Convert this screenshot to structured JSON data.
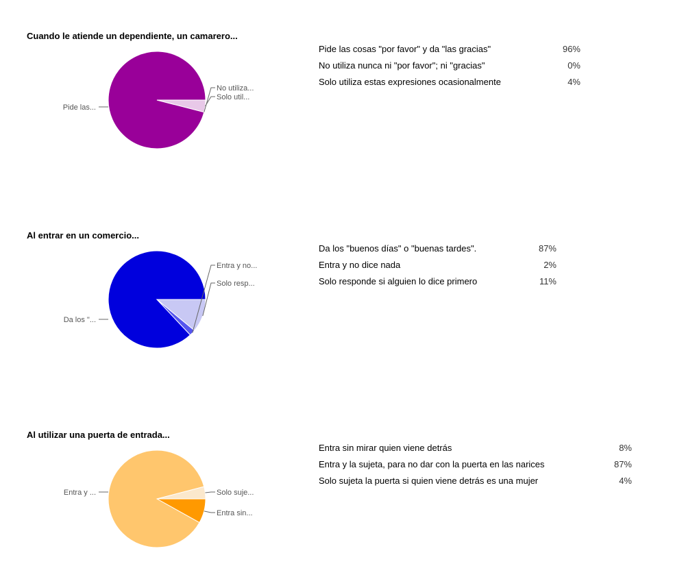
{
  "chart_data": [
    {
      "type": "pie",
      "title": "Cuando le atiende un dependiente, un camarero...",
      "slices": [
        {
          "label": "Pide las cosas \"por favor\" y da \"las gracias\"",
          "short_label": "Pide las...",
          "percent_label": "96%",
          "value": 96,
          "color": "#990099"
        },
        {
          "label": "No utiliza nunca ni \"por favor\"; ni \"gracias\"",
          "short_label": "No utiliza...",
          "percent_label": "0%",
          "value": 0,
          "color": "#dd88dd"
        },
        {
          "label": "Solo utiliza estas expresiones ocasionalmente",
          "short_label": "Solo util...",
          "percent_label": "4%",
          "value": 4,
          "color": "#e8c8e8"
        }
      ]
    },
    {
      "type": "pie",
      "title": "Al entrar en un comercio...",
      "slices": [
        {
          "label": "Da los \"buenos días\" o \"buenas tardes\".",
          "short_label": "Da los \"...",
          "percent_label": "87%",
          "value": 87,
          "color": "#0000dd"
        },
        {
          "label": "Entra y no dice nada",
          "short_label": "Entra y no...",
          "percent_label": "2%",
          "value": 2,
          "color": "#5555ee"
        },
        {
          "label": "Solo responde si alguien lo dice primero",
          "short_label": "Solo resp...",
          "percent_label": "11%",
          "value": 11,
          "color": "#c8c8f4"
        }
      ]
    },
    {
      "type": "pie",
      "title": "Al utilizar una puerta de entrada...",
      "slices": [
        {
          "label": "Entra sin mirar quien viene detrás",
          "short_label": "Entra sin...",
          "percent_label": "8%",
          "value": 8,
          "color": "#ff9900"
        },
        {
          "label": "Entra y la sujeta, para no dar con la puerta en las narices",
          "short_label": "Entra y ...",
          "percent_label": "87%",
          "value": 87,
          "color": "#ffc66d"
        },
        {
          "label": "Solo sujeta la puerta si quien viene detrás es una mujer",
          "short_label": "Solo suje...",
          "percent_label": "4%",
          "value": 4,
          "color": "#fbe8cc"
        }
      ]
    }
  ]
}
